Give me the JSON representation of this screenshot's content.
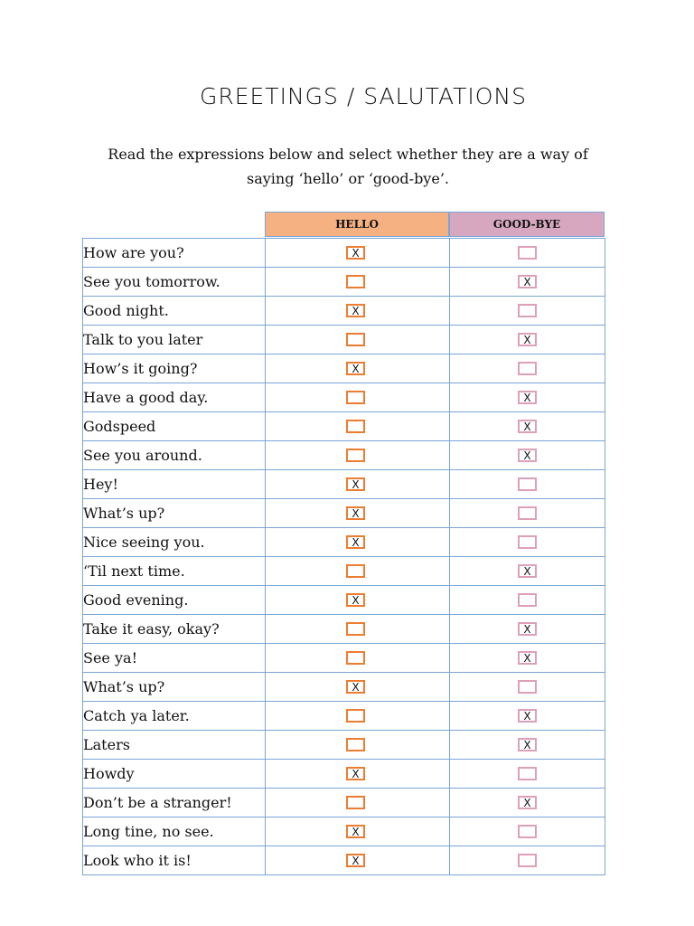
{
  "title": "GREETINGS / SALUTATIONS",
  "instructions": "Read the expressions below and select whether they are a way of saying ‘hello’ or ‘good-bye’.",
  "columns": {
    "hello": "HELLO",
    "goodbye": "GOOD-BYE"
  },
  "mark": "X",
  "colors": {
    "hello_header": "#f6b183",
    "goodbye_header": "#d6a7bf",
    "hello_box": "#ed7d31",
    "goodbye_box": "#dda0bb",
    "grid_line": "#7aa6d6"
  },
  "rows": [
    {
      "phrase": "How are you?",
      "answer": "hello"
    },
    {
      "phrase": "See you tomorrow.",
      "answer": "goodbye"
    },
    {
      "phrase": "Good night.",
      "answer": "hello"
    },
    {
      "phrase": "Talk to you later",
      "answer": "goodbye"
    },
    {
      "phrase": "How’s it going?",
      "answer": "hello"
    },
    {
      "phrase": "Have a good day.",
      "answer": "goodbye"
    },
    {
      "phrase": "Godspeed",
      "answer": "goodbye"
    },
    {
      "phrase": "See you around.",
      "answer": "goodbye"
    },
    {
      "phrase": "Hey!",
      "answer": "hello"
    },
    {
      "phrase": "What’s up?",
      "answer": "hello"
    },
    {
      "phrase": "Nice seeing you.",
      "answer": "hello"
    },
    {
      "phrase": "‘Til next time.",
      "answer": "goodbye"
    },
    {
      "phrase": "Good evening.",
      "answer": "hello"
    },
    {
      "phrase": "Take it easy, okay?",
      "answer": "goodbye"
    },
    {
      "phrase": "See ya!",
      "answer": "goodbye"
    },
    {
      "phrase": "What’s up?",
      "answer": "hello"
    },
    {
      "phrase": "Catch ya later.",
      "answer": "goodbye"
    },
    {
      "phrase": "Laters",
      "answer": "goodbye"
    },
    {
      "phrase": "Howdy",
      "answer": "hello"
    },
    {
      "phrase": "Don’t be a stranger!",
      "answer": "goodbye"
    },
    {
      "phrase": "Long tine, no see.",
      "answer": "hello"
    },
    {
      "phrase": "Look who it is!",
      "answer": "hello"
    }
  ]
}
